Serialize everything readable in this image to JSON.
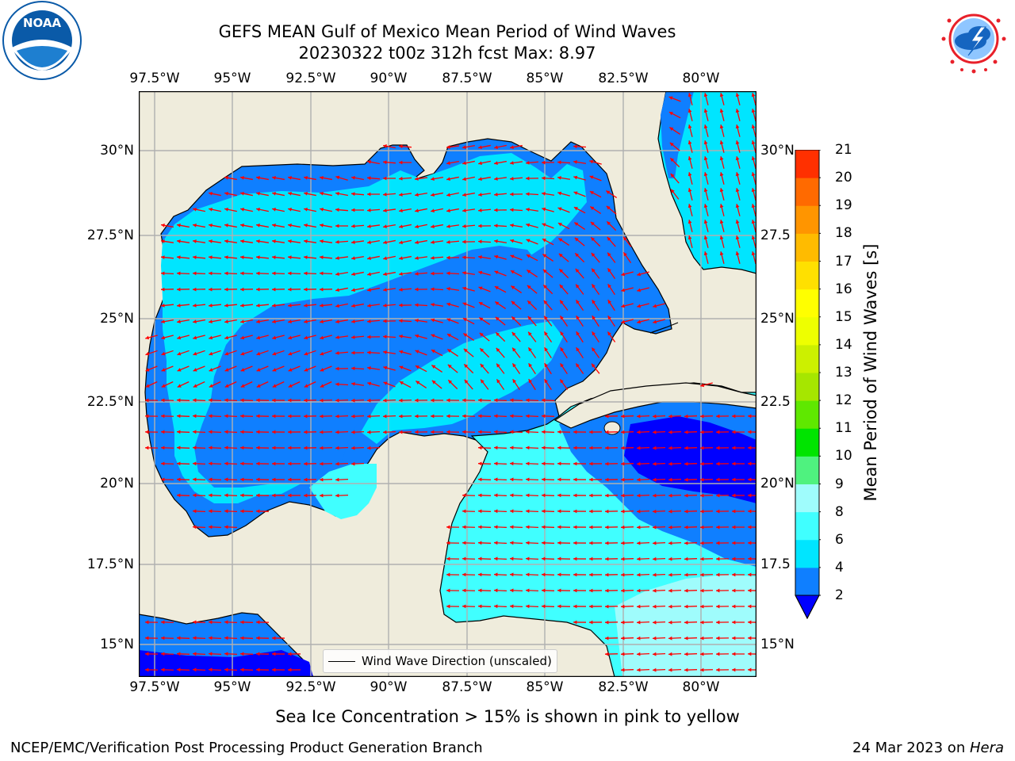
{
  "title": {
    "line1": "GEFS MEAN Gulf of Mexico Mean Period of Wind Waves",
    "line2": "20230322 t00z 312h fcst   Max: 8.97"
  },
  "axes": {
    "lon_labels": [
      "97.5°W",
      "95°W",
      "92.5°W",
      "90°W",
      "87.5°W",
      "85°W",
      "82.5°W",
      "80°W"
    ],
    "lat_labels_left": [
      "30°N",
      "27.5°N",
      "25°N",
      "22.5°N",
      "20°N",
      "17.5°N",
      "15°N"
    ],
    "lat_labels_right": [
      "30°N",
      "27.5",
      "25°N",
      "22.5",
      "20°N",
      "17.5",
      "15°N"
    ]
  },
  "legend": {
    "label": "Wind Wave Direction (unscaled)"
  },
  "colorbar": {
    "label": "Mean Period of Wind Waves [s]",
    "ticks": [
      "2",
      "4",
      "6",
      "8",
      "9",
      "10",
      "11",
      "12",
      "13",
      "14",
      "15",
      "16",
      "17",
      "18",
      "19",
      "20",
      "21"
    ],
    "colors": [
      "#0f7fff",
      "#00e5ff",
      "#40ffff",
      "#9ffcfc",
      "#4ff27f",
      "#00e400",
      "#5fe800",
      "#a6e600",
      "#ccf000",
      "#eeff00",
      "#ffff00",
      "#ffe000",
      "#ffbb00",
      "#ff9500",
      "#ff6a00",
      "#ff3000"
    ],
    "under_color": "#0000ff"
  },
  "chart_data": {
    "type": "heatmap",
    "variable": "Mean Period of Wind Waves [s]",
    "max": 8.97,
    "lon_range": [
      -98.3,
      -78.6
    ],
    "lat_range": [
      14.1,
      31.8
    ],
    "levels": [
      2,
      4,
      6,
      8,
      9,
      10,
      11,
      12,
      13,
      14,
      15,
      16,
      17,
      18,
      19,
      20,
      21
    ]
  },
  "notes": {
    "sea_ice": "Sea Ice Concentration > 15% is shown in pink to yellow",
    "credit": "NCEP/EMC/Verification Post Processing Product Generation Branch",
    "date_prefix": "24 Mar 2023 on ",
    "date_host": "Hera"
  },
  "logos": {
    "left": "NOAA",
    "right": "NATIONAL WEATHER SERVICE"
  },
  "colors": {
    "land": "#efecdc",
    "arrow": "#ff0000",
    "grid": "#b0b0b0",
    "noaa_blue": "#0a5aa8",
    "nws_red": "#e8202a"
  }
}
